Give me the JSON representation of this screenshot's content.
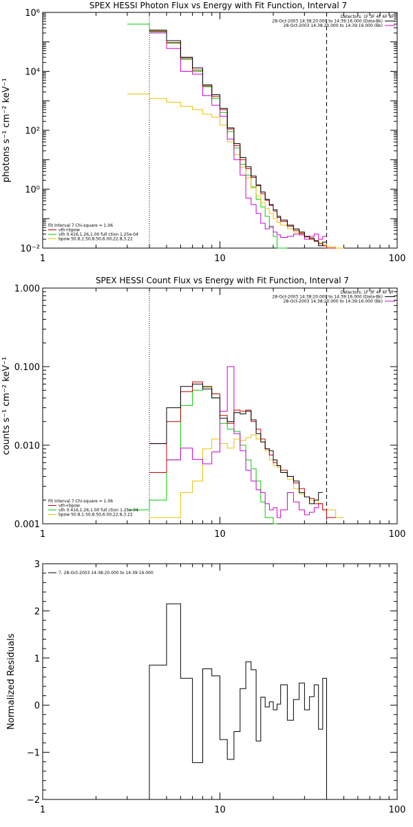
{
  "colors": {
    "data": "#000000",
    "bkg": "#d000d0",
    "vth_bpow": "#c00000",
    "vth": "#00cc00",
    "bpow": "#e8c000"
  },
  "chart_data": [
    {
      "type": "line",
      "title": "SPEX HESSI Photon Flux vs Energy with Fit Function, Interval 7",
      "ylabel": "photons s⁻¹ cm⁻² keV⁻¹",
      "xlabel": "",
      "xscale": "log",
      "yscale": "log",
      "xlim": [
        1,
        100
      ],
      "ylim": [
        0.01,
        1000000
      ],
      "xticks": [
        1,
        10,
        100
      ],
      "xticklabels": [
        "1",
        "10",
        "100"
      ],
      "yticks": [
        0.01,
        1,
        100,
        10000,
        1000000
      ],
      "yticklabels": [
        "10⁻²",
        "10⁰",
        "10²",
        "10⁴",
        "10⁶"
      ],
      "vlines": [
        {
          "x": 4,
          "style": "dotted"
        },
        {
          "x": 40,
          "style": "dashed"
        }
      ],
      "legend_right": {
        "lines": [
          {
            "text": "Detectors: 1F 3F 4F 6F 9F",
            "color": ""
          },
          {
            "text": "28-Oct-2003 14:38:20.000 to 14:39:16.000 (Data-Bk)",
            "color": "data"
          },
          {
            "text": "28-Oct-2003 14:38:20.000 to 14:39:16.000 (Bk)",
            "color": "bkg"
          }
        ]
      },
      "legend_left": {
        "lines": [
          {
            "text": "Fit Interval 7   Chi-square = 1.06",
            "color": ""
          },
          {
            "text": "vth+bpow",
            "color": "vth_bpow"
          },
          {
            "text": "vth 0.416,1.26,1.00  full ction 1.25e-04",
            "color": "vth"
          },
          {
            "text": "bpow 50.8,1.50,8.50,6.00,22.8,3.22",
            "color": "bpow"
          }
        ]
      },
      "edges": [
        3.0,
        4.0,
        5.0,
        6.0,
        7.0,
        8.0,
        9.0,
        10.0,
        11.0,
        12.0,
        13.0,
        14.0,
        15.0,
        16.0,
        17.0,
        18.0,
        19.0,
        20.0,
        21.0,
        22.0,
        24.0,
        26.0,
        28.0,
        30.0,
        32.0,
        34.0,
        36.0,
        38.0,
        40.0,
        45.0,
        50.0
      ],
      "series": [
        {
          "key": "data",
          "values": [
            null,
            250000,
            110000,
            30000,
            13000,
            3500,
            1600,
            550,
            120,
            35,
            12,
            5.8,
            2.8,
            1.4,
            0.8,
            0.45,
            0.3,
            0.2,
            0.12,
            0.09,
            0.06,
            0.045,
            0.035,
            0.025,
            0.022,
            0.018,
            0.012,
            0.016,
            null,
            null
          ]
        },
        {
          "key": "vth_bpow",
          "values": [
            null,
            230000,
            95000,
            28000,
            11000,
            3200,
            1400,
            500,
            110,
            30,
            10,
            5,
            2.5,
            1.3,
            0.7,
            0.42,
            0.28,
            0.18,
            0.11,
            0.08,
            0.055,
            0.04,
            0.032,
            0.024,
            0.02,
            0.017,
            0.014,
            0.012,
            0.009,
            null
          ]
        },
        {
          "key": "bkg",
          "values": [
            null,
            200000,
            60000,
            10000,
            8000,
            1500,
            700,
            300,
            50,
            10,
            3,
            0.5,
            0.3,
            0.15,
            0.07,
            0.045,
            0.055,
            0.035,
            0.028,
            0.023,
            0.025,
            0.03,
            0.028,
            0.02,
            0.025,
            0.03,
            0.02,
            0.025,
            null,
            null
          ]
        },
        {
          "key": "vth",
          "values": [
            400000,
            220000,
            90000,
            25000,
            10000,
            3000,
            1200,
            400,
            90,
            25,
            7,
            3,
            1.2,
            0.45,
            0.25,
            0.12,
            0.05,
            0.025,
            0.01,
            0.01,
            null,
            null,
            null,
            null,
            null,
            null,
            null,
            null,
            null,
            null
          ]
        },
        {
          "key": "bpow",
          "values": [
            1700,
            1200,
            900,
            650,
            500,
            350,
            280,
            150,
            40,
            15,
            5.5,
            2.4,
            1.1,
            0.6,
            0.35,
            0.22,
            0.15,
            0.1,
            0.075,
            0.06,
            0.045,
            0.035,
            0.03,
            0.025,
            0.02,
            0.018,
            0.015,
            0.013,
            0.011,
            0.01
          ]
        }
      ]
    },
    {
      "type": "line",
      "title": "SPEX HESSI Count Flux vs Energy with Fit Function, Interval 7",
      "ylabel": "counts s⁻¹ cm⁻² keV⁻¹",
      "xlabel": "",
      "xscale": "log",
      "yscale": "log",
      "xlim": [
        1,
        100
      ],
      "ylim": [
        0.001,
        1
      ],
      "xticks": [
        1,
        10,
        100
      ],
      "xticklabels": [
        "1",
        "10",
        "100"
      ],
      "yticks": [
        0.001,
        0.01,
        0.1,
        1
      ],
      "yticklabels": [
        "0.001",
        "0.010",
        "0.100",
        "1.000"
      ],
      "vlines": [
        {
          "x": 4,
          "style": "dotted"
        },
        {
          "x": 40,
          "style": "dashed"
        }
      ],
      "legend_right": {
        "lines": [
          {
            "text": "Detectors: 1F 3F 4F 6F 9F",
            "color": ""
          },
          {
            "text": "28-Oct-2003 14:38:20.000 to 14:39:16.000 (Data-Bk)",
            "color": "data"
          },
          {
            "text": "28-Oct-2003 14:38:20.000 to 14:39:16.000 (Bk)",
            "color": "bkg"
          }
        ]
      },
      "legend_left": {
        "lines": [
          {
            "text": "Fit Interval 7   Chi-square = 1.06",
            "color": ""
          },
          {
            "text": "vth+bpow",
            "color": "vth_bpow"
          },
          {
            "text": "vth 0.416,1.26,1.00  full ction 1.25e-04",
            "color": "vth"
          },
          {
            "text": "bpow 50.8,1.50,8.50,6.00,22.8,3.22",
            "color": "bpow"
          }
        ]
      },
      "edges": [
        3.0,
        4.0,
        5.0,
        6.0,
        7.0,
        8.0,
        9.0,
        10.0,
        11.0,
        12.0,
        13.0,
        14.0,
        15.0,
        16.0,
        17.0,
        18.0,
        19.0,
        20.0,
        21.0,
        22.0,
        24.0,
        26.0,
        28.0,
        30.0,
        32.0,
        34.0,
        36.0,
        38.0,
        40.0,
        45.0,
        50.0
      ],
      "series": [
        {
          "key": "data",
          "values": [
            null,
            0.0105,
            0.03,
            0.056,
            0.06,
            0.052,
            0.04,
            0.022,
            0.02,
            0.026,
            0.025,
            0.027,
            0.021,
            0.014,
            0.011,
            0.009,
            0.0085,
            0.0065,
            0.0055,
            0.0045,
            0.004,
            0.0035,
            0.0025,
            0.0022,
            0.0018,
            0.002,
            0.0025,
            null,
            null,
            null
          ]
        },
        {
          "key": "vth_bpow",
          "values": [
            null,
            0.0045,
            0.02,
            0.048,
            0.064,
            0.056,
            0.045,
            0.024,
            0.019,
            0.028,
            0.027,
            0.028,
            0.02,
            0.016,
            0.012,
            0.009,
            0.0075,
            0.006,
            0.0055,
            0.0048,
            0.004,
            0.0033,
            0.0028,
            0.0022,
            0.0021,
            0.0018,
            0.0018,
            0.0015,
            0.0012,
            null
          ]
        },
        {
          "key": "bkg",
          "values": [
            null,
            0.0105,
            0.0065,
            0.0092,
            0.0066,
            0.0058,
            0.0082,
            0.027,
            0.1,
            0.014,
            0.0085,
            0.0048,
            0.0035,
            0.0027,
            0.0025,
            0.0018,
            0.0015,
            0.0016,
            0.0012,
            0.0015,
            0.0025,
            0.0019,
            0.0015,
            0.0013,
            0.0014,
            0.0016,
            0.0018,
            null,
            null,
            null
          ]
        },
        {
          "key": "vth",
          "values": [
            0.0015,
            0.002,
            0.0065,
            0.032,
            0.05,
            0.055,
            0.04,
            0.019,
            0.016,
            0.015,
            0.01,
            0.0065,
            0.005,
            0.0035,
            0.0019,
            0.0012,
            0.0012,
            0.001,
            null,
            null,
            null,
            null,
            null,
            null,
            null,
            null,
            null,
            null,
            null,
            null
          ]
        },
        {
          "key": "bpow",
          "values": [
            null,
            0.0012,
            0.0012,
            0.0025,
            0.0035,
            0.009,
            0.012,
            0.0105,
            0.0092,
            0.012,
            0.0115,
            0.0125,
            0.0135,
            0.012,
            0.011,
            0.0085,
            0.0065,
            0.0055,
            0.0052,
            0.0045,
            0.0037,
            0.0028,
            0.0024,
            0.0022,
            0.002,
            0.002,
            0.0018,
            0.0015,
            0.0015,
            0.0012
          ]
        }
      ]
    },
    {
      "type": "line",
      "title": "",
      "ylabel": "Normalized Residuals",
      "xlabel": "",
      "xscale": "log",
      "yscale": "linear",
      "xlim": [
        1,
        100
      ],
      "ylim": [
        -2,
        3
      ],
      "xticks": [
        1,
        10,
        100
      ],
      "xticklabels": [
        "1",
        "10",
        "100"
      ],
      "yticks": [
        -2,
        -1,
        0,
        1,
        2,
        3
      ],
      "yticklabels": [
        "−2",
        "−1",
        "0",
        "1",
        "2",
        "3"
      ],
      "vlines": [],
      "legend_left": {
        "lines": [
          {
            "text": "7. 28-Oct-2003 14:38:20.000 to 14:39:16.000",
            "color": "data"
          }
        ]
      },
      "edges": [
        4.0,
        5.0,
        6.0,
        7.0,
        8.0,
        9.0,
        10.0,
        11.0,
        12.0,
        13.0,
        14.0,
        15.0,
        16.0,
        17.0,
        18.0,
        19.0,
        20.0,
        21.0,
        22.0,
        24.0,
        26.0,
        28.0,
        30.0,
        32.0,
        34.0,
        36.0,
        38.0,
        40.0
      ],
      "drop_ends": true,
      "series": [
        {
          "key": "data",
          "values": [
            0.85,
            2.15,
            0.57,
            -1.22,
            0.77,
            0.62,
            -0.73,
            -1.15,
            -0.56,
            0.35,
            0.92,
            0.75,
            -0.76,
            0.17,
            -0.04,
            0.07,
            -0.1,
            0.02,
            0.43,
            -0.32,
            0.12,
            0.47,
            -0.1,
            0.18,
            0.43,
            -0.51,
            0.57
          ]
        }
      ]
    }
  ]
}
